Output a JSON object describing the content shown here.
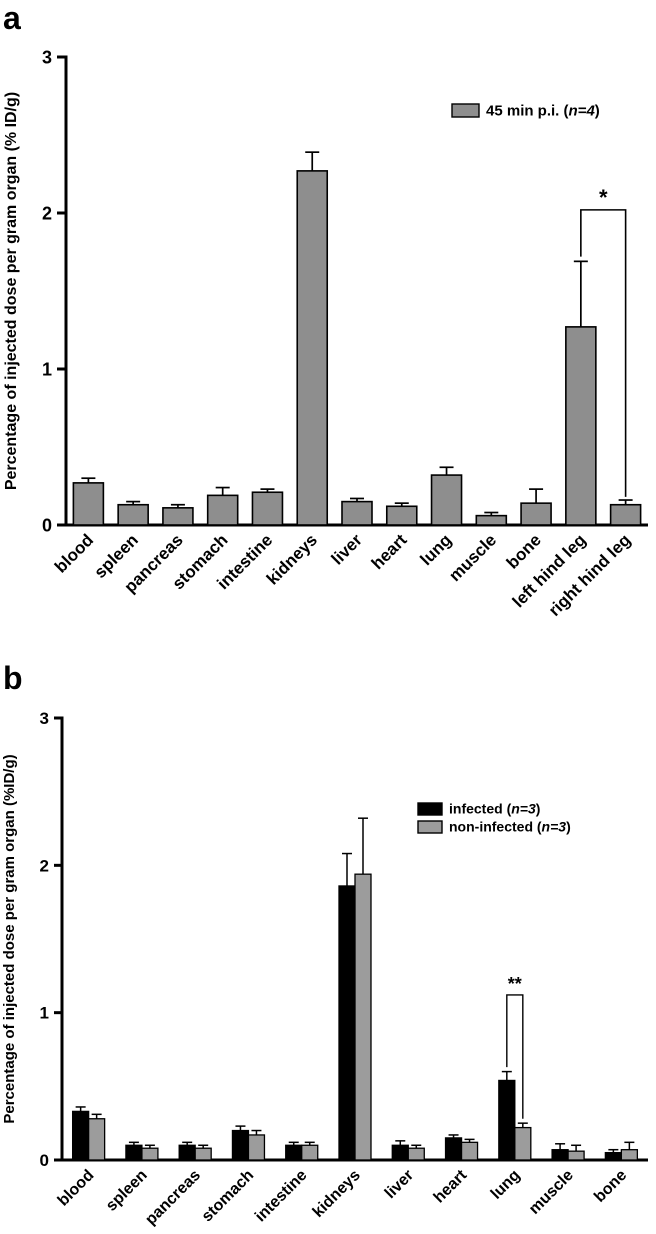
{
  "figure": {
    "background": "#ffffff",
    "panel_a_label": "a",
    "panel_b_label": "b"
  },
  "chart_data": [
    {
      "type": "bar",
      "panel_label": "a",
      "title": "",
      "xlabel": "",
      "ylabel": "Percentage of injected dose per gram organ (% ID/g)",
      "ylim": [
        0,
        3
      ],
      "yticks": [
        0,
        1,
        2,
        3
      ],
      "grid": false,
      "legend_position": "top-right",
      "categories": [
        "blood",
        "spleen",
        "pancreas",
        "stomach",
        "intestine",
        "kidneys",
        "liver",
        "heart",
        "lung",
        "muscle",
        "bone",
        "left hind leg",
        "right hind leg"
      ],
      "series": [
        {
          "key": "45min",
          "name": "45 min p.i. (n=4)",
          "name_parts": {
            "before": "45 min p.i. (",
            "italic": "n=4",
            "after": ")"
          },
          "color": "#8e8e8e",
          "values": [
            0.27,
            0.13,
            0.11,
            0.19,
            0.21,
            2.27,
            0.15,
            0.12,
            0.32,
            0.06,
            0.14,
            1.27,
            0.13
          ],
          "errors": [
            0.03,
            0.02,
            0.02,
            0.05,
            0.02,
            0.12,
            0.02,
            0.02,
            0.05,
            0.02,
            0.09,
            0.42,
            0.03
          ]
        }
      ],
      "significance": {
        "label": "*",
        "from": {
          "category": "left hind leg",
          "series": 0
        },
        "to": {
          "category": "right hind leg",
          "series": 0
        },
        "top": 2.02,
        "from_bottom": 1.72,
        "to_bottom": 0.18
      }
    },
    {
      "type": "bar",
      "panel_label": "b",
      "title": "",
      "xlabel": "",
      "ylabel": "Percentage of injected dose per gram organ (%ID/g)",
      "ylim": [
        0,
        3
      ],
      "yticks": [
        0,
        1,
        2,
        3
      ],
      "grid": false,
      "legend_position": "top-right",
      "categories": [
        "blood",
        "spleen",
        "pancreas",
        "stomach",
        "intestine",
        "kidneys",
        "liver",
        "heart",
        "lung",
        "muscle",
        "bone"
      ],
      "series": [
        {
          "key": "infected",
          "name": "infected (n=3)",
          "name_parts": {
            "before": "infected (",
            "italic": "n=3",
            "after": ")"
          },
          "color": "#000000",
          "values": [
            0.33,
            0.1,
            0.1,
            0.2,
            0.1,
            1.86,
            0.1,
            0.15,
            0.54,
            0.07,
            0.05
          ],
          "errors": [
            0.03,
            0.02,
            0.02,
            0.03,
            0.02,
            0.22,
            0.03,
            0.02,
            0.06,
            0.04,
            0.02
          ]
        },
        {
          "key": "noninfected",
          "name": "non-infected (n=3)",
          "name_parts": {
            "before": "non-infected (",
            "italic": "n=3",
            "after": ")"
          },
          "color": "#9c9c9c",
          "values": [
            0.28,
            0.08,
            0.08,
            0.17,
            0.1,
            1.94,
            0.08,
            0.12,
            0.22,
            0.06,
            0.07
          ],
          "errors": [
            0.03,
            0.02,
            0.02,
            0.03,
            0.02,
            0.38,
            0.02,
            0.02,
            0.03,
            0.04,
            0.05
          ]
        }
      ],
      "significance": {
        "label": "**",
        "from": {
          "category": "lung",
          "series": 0
        },
        "to": {
          "category": "lung",
          "series": 1
        },
        "top": 1.12,
        "from_bottom": 0.63,
        "to_bottom": 0.28
      }
    }
  ]
}
